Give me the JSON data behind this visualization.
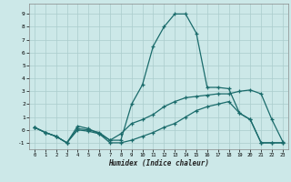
{
  "xlabel": "Humidex (Indice chaleur)",
  "bg_color": "#cce8e8",
  "line_color": "#1a6b6b",
  "grid_color": "#aacccc",
  "xlim": [
    -0.5,
    23.5
  ],
  "ylim": [
    -1.5,
    9.8
  ],
  "xticks": [
    0,
    1,
    2,
    3,
    4,
    5,
    6,
    7,
    8,
    9,
    10,
    11,
    12,
    13,
    14,
    15,
    16,
    17,
    18,
    19,
    20,
    21,
    22,
    23
  ],
  "yticks": [
    -1,
    0,
    1,
    2,
    3,
    4,
    5,
    6,
    7,
    8,
    9
  ],
  "line1_x": [
    0,
    1,
    2,
    3,
    4,
    5,
    6,
    7,
    8,
    9,
    10,
    11,
    12,
    13,
    14,
    15,
    16,
    17,
    18,
    19,
    20,
    21,
    22,
    23
  ],
  "line1_y": [
    0.2,
    -0.2,
    -0.5,
    -1.0,
    0.3,
    0.1,
    -0.3,
    -0.8,
    -0.8,
    2.0,
    3.5,
    6.5,
    8.0,
    9.0,
    9.0,
    7.5,
    3.3,
    3.3,
    3.2,
    1.3,
    0.8,
    -1.0,
    -1.0,
    -1.0
  ],
  "line2_x": [
    0,
    1,
    2,
    3,
    4,
    5,
    6,
    7,
    8,
    9,
    10,
    11,
    12,
    13,
    14,
    15,
    16,
    17,
    18,
    19,
    20,
    21,
    22,
    23
  ],
  "line2_y": [
    0.2,
    -0.2,
    -0.5,
    -1.0,
    0.1,
    0.0,
    -0.2,
    -0.8,
    -0.3,
    0.5,
    0.8,
    1.2,
    1.8,
    2.2,
    2.5,
    2.6,
    2.7,
    2.8,
    2.8,
    3.0,
    3.1,
    2.8,
    0.8,
    -0.9
  ],
  "line3_x": [
    0,
    1,
    2,
    3,
    4,
    5,
    6,
    7,
    8,
    9,
    10,
    11,
    12,
    13,
    14,
    15,
    16,
    17,
    18,
    19,
    20,
    21,
    22,
    23
  ],
  "line3_y": [
    0.2,
    -0.2,
    -0.5,
    -1.0,
    0.0,
    -0.1,
    -0.3,
    -1.0,
    -1.0,
    -0.8,
    -0.5,
    -0.2,
    0.2,
    0.5,
    1.0,
    1.5,
    1.8,
    2.0,
    2.2,
    1.3,
    0.8,
    -1.0,
    -1.0,
    -1.0
  ]
}
